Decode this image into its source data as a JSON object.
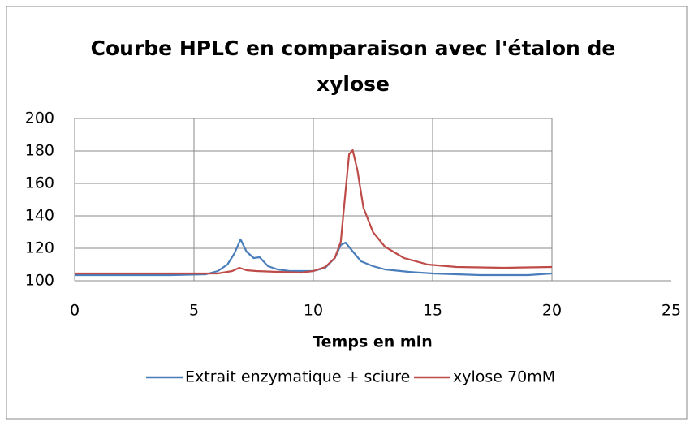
{
  "chart_data": {
    "type": "line",
    "title": "Courbe HPLC en comparaison avec l'étalon de xylose",
    "x_label": "Temps en min",
    "xlim": [
      0,
      25
    ],
    "xticks": [
      0,
      5,
      10,
      15,
      20,
      25
    ],
    "ylim": [
      100,
      200
    ],
    "yticks": [
      100,
      120,
      140,
      160,
      180,
      200
    ],
    "grid": true,
    "legend": "bottom",
    "series": [
      {
        "name": "Extrait enzymatique + sciure",
        "color": "#4a7ebb",
        "x": [
          0,
          2,
          4,
          5.5,
          6,
          6.4,
          6.7,
          6.95,
          7.2,
          7.5,
          7.75,
          8.1,
          8.5,
          9,
          10,
          10.5,
          10.9,
          11.15,
          11.35,
          11.6,
          12,
          12.5,
          13,
          14,
          15,
          17,
          19,
          20
        ],
        "values": [
          103.5,
          103.5,
          103.5,
          104,
          106,
          110,
          117,
          125.5,
          118,
          114,
          114.5,
          109,
          107,
          106,
          106,
          108,
          114,
          122,
          123.5,
          119,
          112,
          109,
          107,
          105.5,
          104.5,
          103.5,
          103.5,
          104.5
        ]
      },
      {
        "name": "xylose 70mM",
        "color": "#be4b48",
        "x": [
          0,
          3,
          6,
          6.6,
          6.9,
          7.2,
          7.6,
          8.5,
          9.5,
          10,
          10.5,
          10.9,
          11.15,
          11.35,
          11.5,
          11.65,
          11.85,
          12.1,
          12.5,
          13,
          13.8,
          14.8,
          16,
          18,
          20
        ],
        "values": [
          104.5,
          104.5,
          104.5,
          106,
          108,
          106.5,
          106,
          105.5,
          105,
          106,
          108.5,
          114,
          124,
          155,
          178,
          180.5,
          168,
          145,
          130,
          121,
          114,
          110,
          108.5,
          108,
          108.5
        ]
      }
    ]
  }
}
